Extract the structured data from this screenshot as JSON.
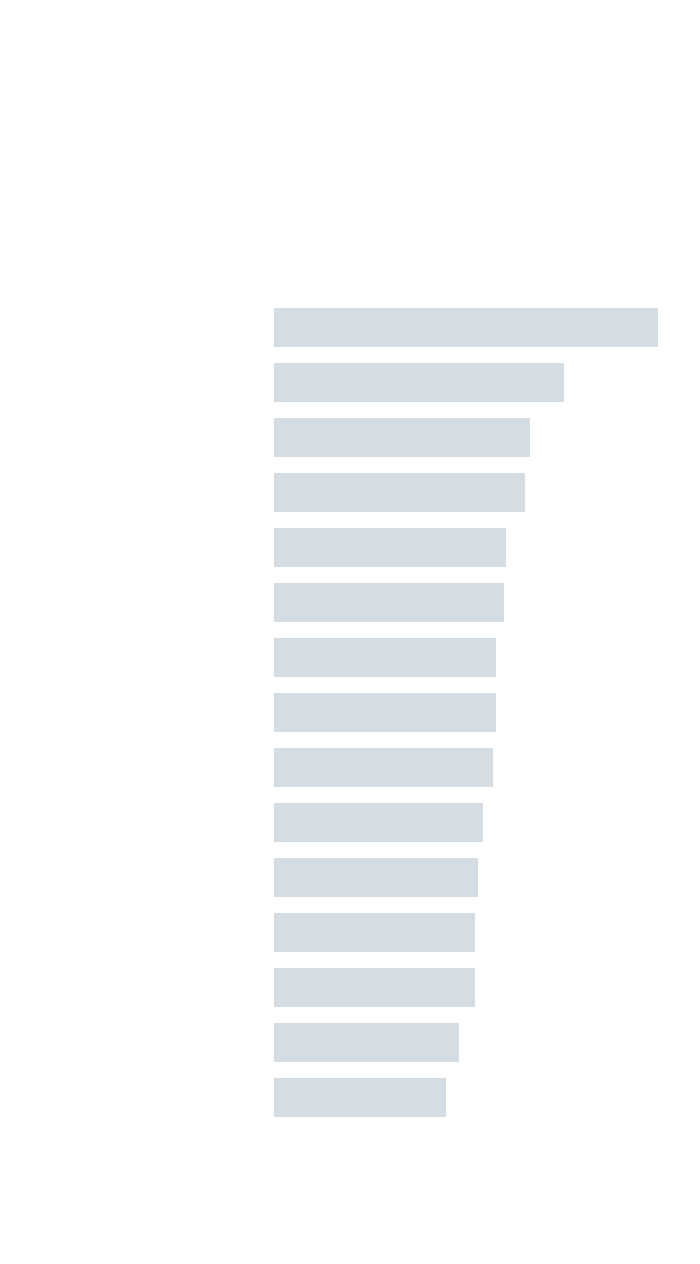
{
  "chart_data": {
    "type": "hbar",
    "categories": [
      null,
      null,
      null,
      null,
      null,
      null,
      null,
      null,
      null,
      null,
      null,
      null,
      null,
      null,
      null
    ],
    "values": [
      384,
      290,
      256,
      251,
      232,
      230,
      222,
      222,
      219,
      209,
      204,
      201,
      201,
      185,
      172
    ],
    "color": "#d5dce2",
    "xlim": [
      0,
      384
    ]
  }
}
